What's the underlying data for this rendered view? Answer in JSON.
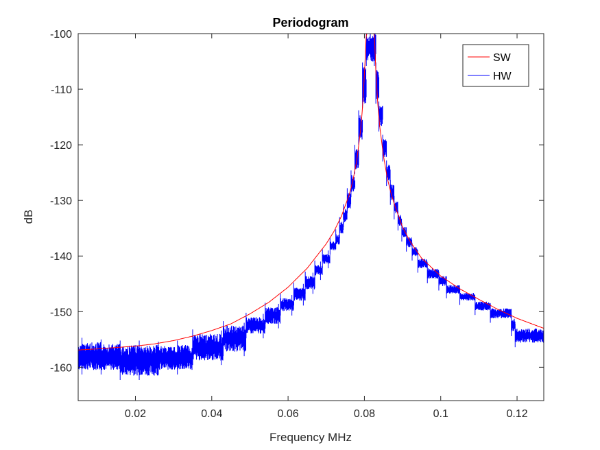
{
  "chart_data": {
    "type": "line",
    "title": "Periodogram",
    "xlabel": "Frequency MHz",
    "ylabel": "dB",
    "xlim": [
      0.005,
      0.127
    ],
    "ylim": [
      -166,
      -100
    ],
    "xticks": [
      0.02,
      0.04,
      0.06,
      0.08,
      0.1,
      0.12
    ],
    "xtick_labels": [
      "0.02",
      "0.04",
      "0.06",
      "0.08",
      "0.1",
      "0.12"
    ],
    "yticks": [
      -160,
      -150,
      -140,
      -130,
      -120,
      -110,
      -100
    ],
    "ytick_labels": [
      "-160",
      "-150",
      "-140",
      "-130",
      "-120",
      "-110",
      "-100"
    ],
    "grid": false,
    "legend_position": "top-right",
    "peak_frequency": 0.0815,
    "series": [
      {
        "name": "SW",
        "color": "#ff0000",
        "style": "smooth",
        "points": [
          [
            0.005,
            -156.9
          ],
          [
            0.01,
            -156.7
          ],
          [
            0.015,
            -156.45
          ],
          [
            0.02,
            -156.2
          ],
          [
            0.025,
            -155.8
          ],
          [
            0.03,
            -155.2
          ],
          [
            0.035,
            -154.4
          ],
          [
            0.04,
            -153.4
          ],
          [
            0.045,
            -152.2
          ],
          [
            0.05,
            -150.4
          ],
          [
            0.055,
            -148.3
          ],
          [
            0.06,
            -145.6
          ],
          [
            0.065,
            -142.2
          ],
          [
            0.07,
            -137.8
          ],
          [
            0.072,
            -135.6
          ],
          [
            0.074,
            -132.8
          ],
          [
            0.076,
            -129.0
          ],
          [
            0.077,
            -126.4
          ],
          [
            0.078,
            -122.8
          ],
          [
            0.079,
            -117.4
          ],
          [
            0.0795,
            -113.4
          ],
          [
            0.08,
            -107.4
          ],
          [
            0.0805,
            -100
          ],
          [
            0.0826,
            -100
          ],
          [
            0.083,
            -106.8
          ],
          [
            0.0835,
            -112.6
          ],
          [
            0.084,
            -116.6
          ],
          [
            0.085,
            -122.0
          ],
          [
            0.086,
            -126.0
          ],
          [
            0.087,
            -128.8
          ],
          [
            0.088,
            -131.0
          ],
          [
            0.09,
            -134.8
          ],
          [
            0.092,
            -137.4
          ],
          [
            0.095,
            -140.4
          ],
          [
            0.1,
            -143.6
          ],
          [
            0.105,
            -145.9
          ],
          [
            0.11,
            -147.8
          ],
          [
            0.115,
            -149.6
          ],
          [
            0.12,
            -151.2
          ],
          [
            0.127,
            -153.0
          ]
        ]
      },
      {
        "name": "HW",
        "color": "#0000ff",
        "style": "noisy-steps",
        "bands": [
          [
            0.005,
            -160.5,
            -156.0
          ],
          [
            0.006,
            -160.5,
            -155.5
          ],
          [
            0.011,
            -160.5,
            -155.8
          ],
          [
            0.016,
            -161.5,
            -156.0
          ],
          [
            0.021,
            -161.5,
            -156.0
          ],
          [
            0.026,
            -160.5,
            -156.2
          ],
          [
            0.031,
            -160.5,
            -156.0
          ],
          [
            0.035,
            -158.8,
            -154.0
          ],
          [
            0.0425,
            -158.8,
            -154.2
          ],
          [
            0.043,
            -157.2,
            -152.5
          ],
          [
            0.0485,
            -157.2,
            -152.8
          ],
          [
            0.049,
            -154.0,
            -151.0
          ],
          [
            0.0535,
            -154.0,
            -151.2
          ],
          [
            0.054,
            -152.2,
            -149.2
          ],
          [
            0.0575,
            -152.2,
            -149.4
          ],
          [
            0.058,
            -149.9,
            -147.6
          ],
          [
            0.061,
            -149.9,
            -147.8
          ],
          [
            0.0615,
            -148.1,
            -145.6
          ],
          [
            0.064,
            -148.1,
            -145.8
          ],
          [
            0.0645,
            -146.0,
            -143.6
          ],
          [
            0.0665,
            -146.0,
            -143.8
          ],
          [
            0.067,
            -143.5,
            -141.6
          ],
          [
            0.0685,
            -143.5,
            -141.8
          ],
          [
            0.069,
            -141.4,
            -139.6
          ],
          [
            0.0705,
            -141.4,
            -139.8
          ],
          [
            0.071,
            -139.0,
            -137.4
          ],
          [
            0.0725,
            -138.0,
            -136.0
          ],
          [
            0.0735,
            -136.0,
            -133.8
          ],
          [
            0.0745,
            -134.0,
            -131.5
          ],
          [
            0.0755,
            -131.5,
            -128.6
          ],
          [
            0.0765,
            -128.6,
            -125.4
          ],
          [
            0.0775,
            -124.4,
            -120.8
          ],
          [
            0.0785,
            -119.2,
            -114.6
          ],
          [
            0.0795,
            -112.6,
            -106.0
          ],
          [
            0.0805,
            -105.0,
            -100.0
          ],
          [
            0.0826,
            -105.0,
            -100.0
          ],
          [
            0.083,
            -111.8,
            -106.0
          ],
          [
            0.0838,
            -116.8,
            -113.0
          ],
          [
            0.0848,
            -122.2,
            -119.0
          ],
          [
            0.0858,
            -126.6,
            -123.6
          ],
          [
            0.0868,
            -130.0,
            -127.0
          ],
          [
            0.0878,
            -132.6,
            -130.0
          ],
          [
            0.0888,
            -134.6,
            -132.6
          ],
          [
            0.0898,
            -136.6,
            -134.8
          ],
          [
            0.091,
            -138.4,
            -136.6
          ],
          [
            0.0925,
            -140.0,
            -138.4
          ],
          [
            0.094,
            -142.2,
            -140.4
          ],
          [
            0.0965,
            -144.1,
            -142.2
          ],
          [
            0.0995,
            -145.4,
            -143.6
          ],
          [
            0.1015,
            -146.8,
            -145.2
          ],
          [
            0.105,
            -148.0,
            -146.6
          ],
          [
            0.109,
            -149.8,
            -148.2
          ],
          [
            0.113,
            -151.2,
            -149.4
          ],
          [
            0.1185,
            -153.6,
            -151.2
          ],
          [
            0.1195,
            -155.6,
            -153.0
          ],
          [
            0.127,
            -155.6,
            -153.0
          ]
        ]
      }
    ]
  }
}
